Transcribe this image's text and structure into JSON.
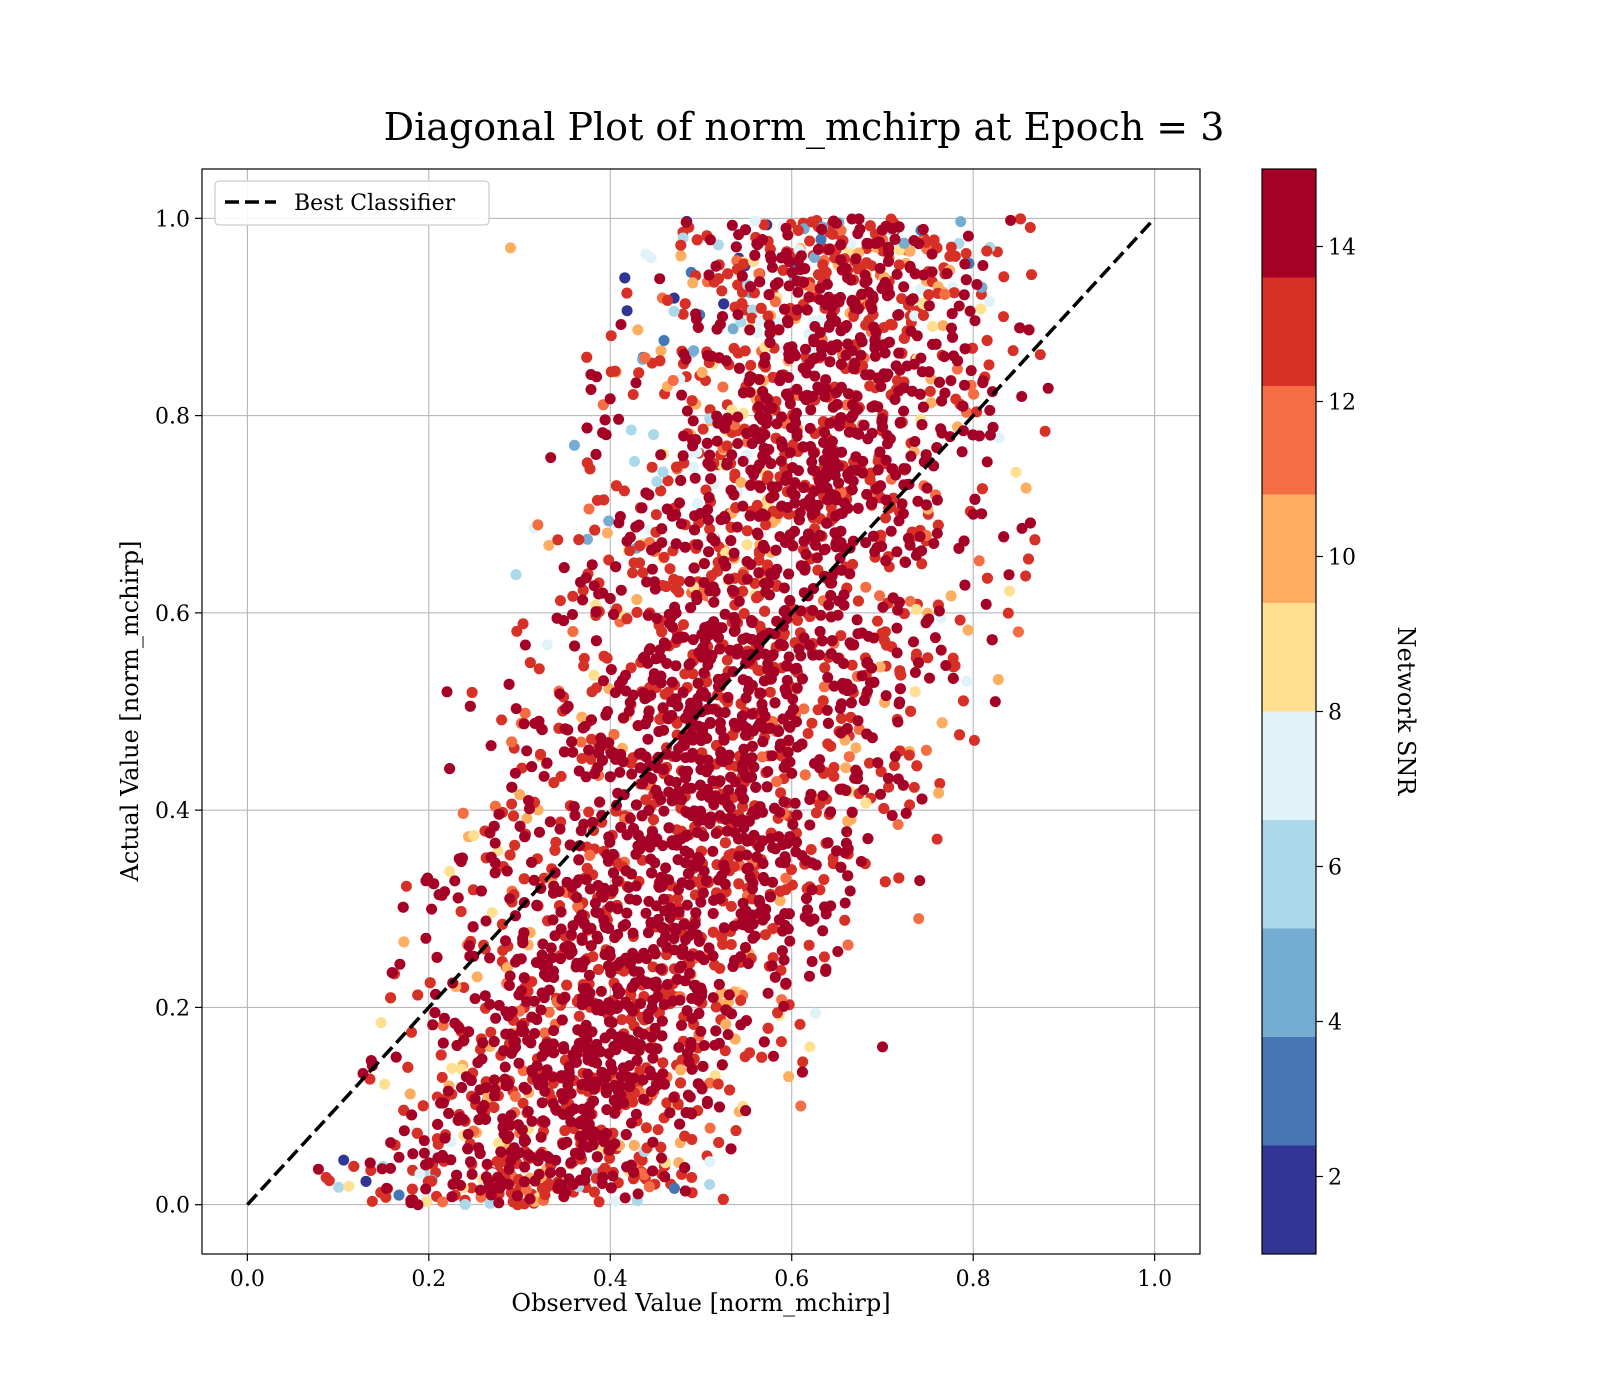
{
  "chart_data": {
    "type": "scatter",
    "title": "Diagonal Plot of norm_mchirp at Epoch = 3",
    "xlabel": "Observed Value [norm_mchirp]",
    "ylabel": "Actual Value [norm_mchirp]",
    "xlim": [
      -0.05,
      1.05
    ],
    "ylim": [
      -0.05,
      1.05
    ],
    "xticks": [
      0.0,
      0.2,
      0.4,
      0.6,
      0.8,
      1.0
    ],
    "yticks": [
      0.0,
      0.2,
      0.4,
      0.6,
      0.8,
      1.0
    ],
    "xtick_labels": [
      "0.0",
      "0.2",
      "0.4",
      "0.6",
      "0.8",
      "1.0"
    ],
    "ytick_labels": [
      "0.0",
      "0.2",
      "0.4",
      "0.6",
      "0.8",
      "1.0"
    ],
    "grid": true,
    "legend": {
      "position": "top-left",
      "entries": [
        {
          "label": "Best Classifier",
          "style": "dashed",
          "color": "#000000"
        }
      ]
    },
    "reference_line": {
      "x": [
        0.0,
        1.0
      ],
      "y": [
        0.0,
        1.0
      ],
      "style": "dashed",
      "color": "#000000"
    },
    "colorbar": {
      "label": "Network SNR",
      "range": [
        1,
        15
      ],
      "ticks": [
        2,
        4,
        6,
        8,
        10,
        12,
        14
      ],
      "tick_labels": [
        "2",
        "4",
        "6",
        "8",
        "10",
        "12",
        "14"
      ],
      "bins": [
        {
          "from": 1,
          "to": 2.4,
          "color": "#313695"
        },
        {
          "from": 2.4,
          "to": 3.8,
          "color": "#4575b4"
        },
        {
          "from": 3.8,
          "to": 5.2,
          "color": "#74add1"
        },
        {
          "from": 5.2,
          "to": 6.6,
          "color": "#abd9e9"
        },
        {
          "from": 6.6,
          "to": 8.0,
          "color": "#e0f3f8"
        },
        {
          "from": 8.0,
          "to": 9.4,
          "color": "#fee090"
        },
        {
          "from": 9.4,
          "to": 10.8,
          "color": "#fdae61"
        },
        {
          "from": 10.8,
          "to": 12.2,
          "color": "#f46d43"
        },
        {
          "from": 12.2,
          "to": 13.6,
          "color": "#d73027"
        },
        {
          "from": 13.6,
          "to": 15,
          "color": "#a50026"
        }
      ]
    },
    "series": [
      {
        "description": "Dense band of points: observed ranges ~0.2-0.8, actual 0-1; band follows actual ≈ 1.7*(observed-0.47)+0.5; high-SNR (dark red) concentrated near center, low SNR (blue/yellow) at edges and extremes",
        "points_by_snr_band": {
          "high": "dark red #a50026, majority",
          "medium": "orange/red #f46d43 / #d73027",
          "low": "yellow/blue #fee090 / #abd9e9 / #4575b4, near top-left and bottom edges"
        },
        "outliers": [
          {
            "x": 0.8,
            "y": 0.7,
            "snr": 14
          },
          {
            "x": 0.7,
            "y": 0.16,
            "snr": 14
          },
          {
            "x": 0.22,
            "y": 0.52,
            "snr": 14
          },
          {
            "x": 0.74,
            "y": 0.29,
            "snr": 11
          },
          {
            "x": 0.62,
            "y": 0.16,
            "snr": 9
          },
          {
            "x": 0.61,
            "y": 0.1,
            "snr": 11
          },
          {
            "x": 0.195,
            "y": 0.065,
            "snr": 14
          },
          {
            "x": 0.29,
            "y": 0.97,
            "snr": 10
          }
        ]
      }
    ]
  }
}
